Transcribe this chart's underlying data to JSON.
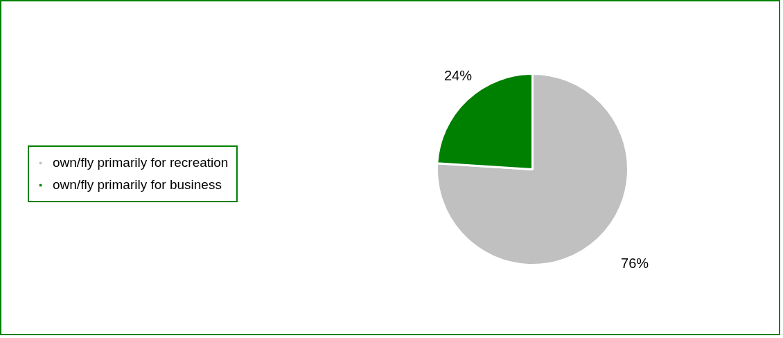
{
  "chart_data": {
    "type": "pie",
    "categories": [
      "own/fly primarily for recreation",
      "own/fly primarily for business"
    ],
    "values": [
      76,
      24
    ],
    "colors": [
      "#c0c0c0",
      "#008000"
    ],
    "value_labels": [
      "76%",
      "24%"
    ],
    "legend": "left"
  }
}
